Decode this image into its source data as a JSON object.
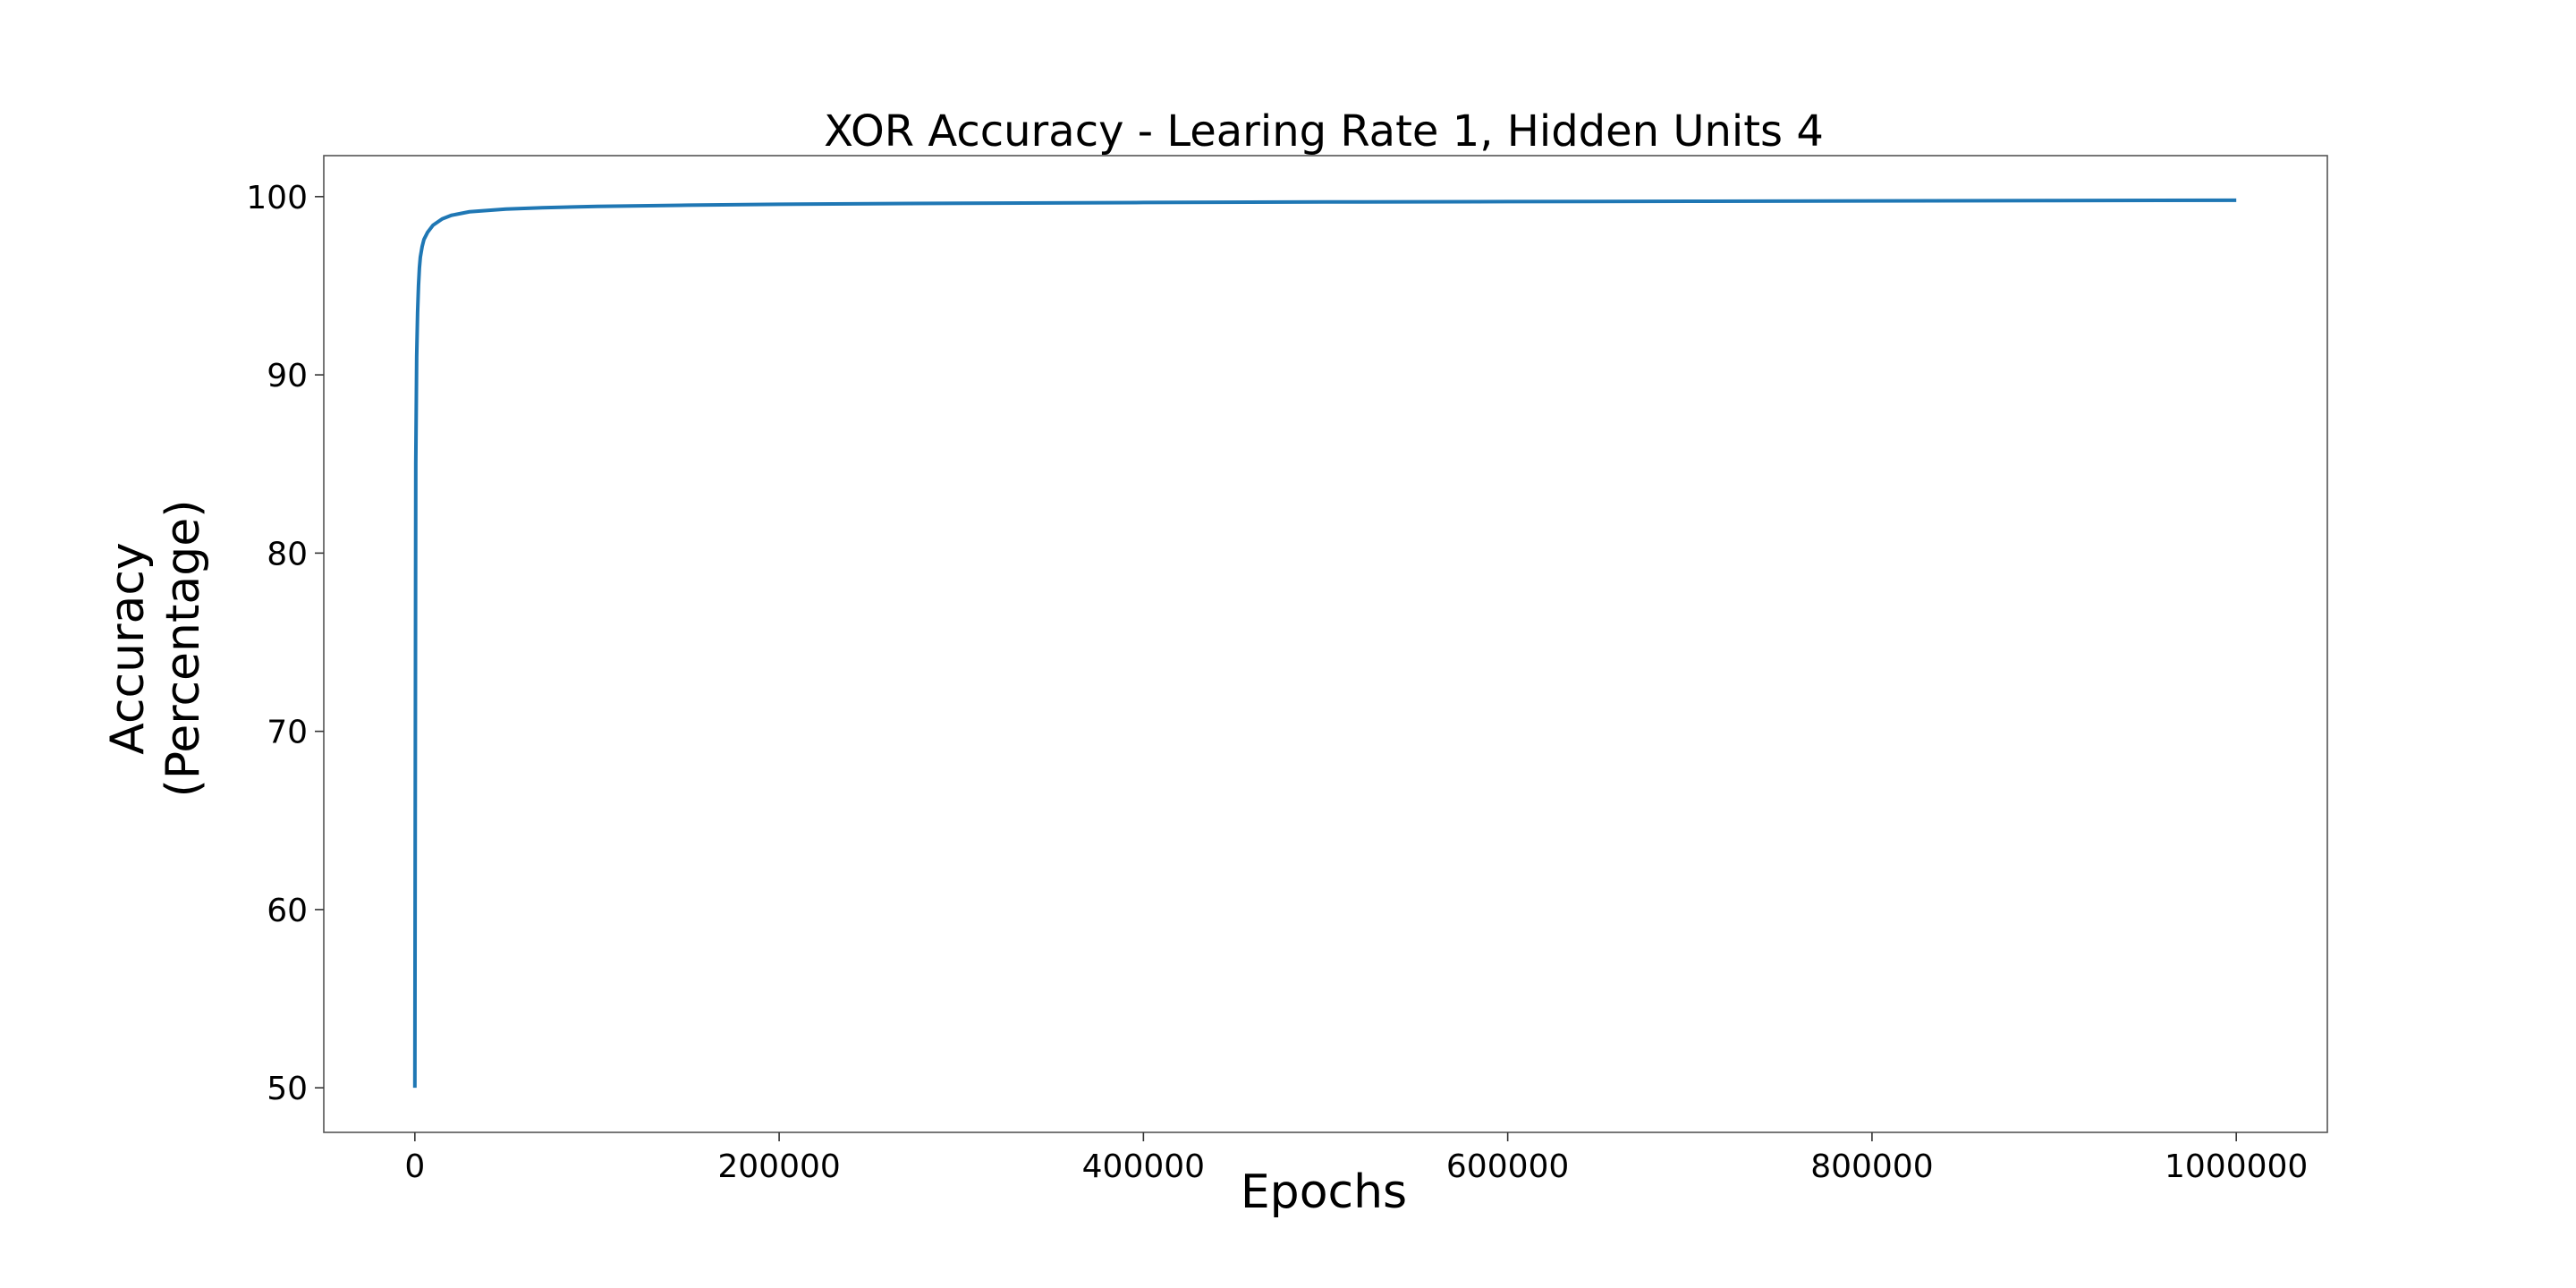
{
  "chart_data": {
    "type": "line",
    "title": "XOR Accuracy - Learing Rate 1, Hidden Units 4",
    "xlabel": "Epochs",
    "ylabel": [
      "Accuracy",
      "(Percentage)"
    ],
    "xlim": [
      -50000,
      1050000
    ],
    "ylim": [
      47.5,
      102.3
    ],
    "xticks": [
      0,
      200000,
      400000,
      600000,
      800000,
      1000000
    ],
    "xtick_labels": [
      "0",
      "200000",
      "400000",
      "600000",
      "800000",
      "1000000"
    ],
    "yticks": [
      50,
      60,
      70,
      80,
      90,
      100
    ],
    "ytick_labels": [
      "50",
      "60",
      "70",
      "80",
      "90",
      "100"
    ],
    "grid": false,
    "series": [
      {
        "color": "#1f77b4",
        "x": [
          0,
          200,
          500,
          1000,
          1500,
          2000,
          2500,
          3000,
          4000,
          5000,
          7000,
          10000,
          15000,
          20000,
          30000,
          50000,
          70000,
          100000,
          150000,
          200000,
          300000,
          400000,
          500000,
          600000,
          700000,
          800000,
          900000,
          1000000
        ],
        "y": [
          50,
          65,
          85,
          91,
          93.5,
          95,
          96,
          96.6,
          97.2,
          97.6,
          98.0,
          98.4,
          98.75,
          98.95,
          99.15,
          99.3,
          99.38,
          99.45,
          99.52,
          99.57,
          99.63,
          99.67,
          99.7,
          99.72,
          99.74,
          99.76,
          99.78,
          99.8
        ]
      }
    ]
  }
}
